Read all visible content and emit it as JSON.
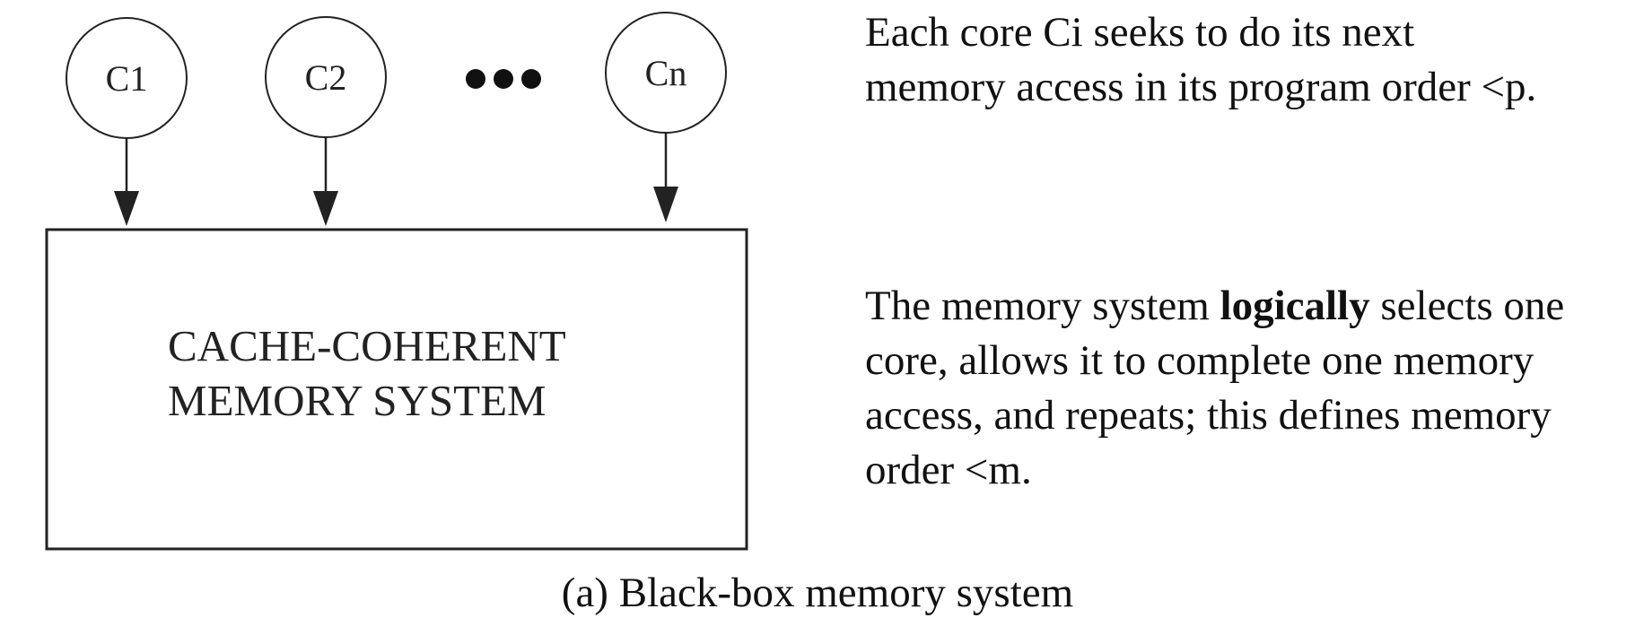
{
  "diagram": {
    "cores": [
      {
        "label": "C1"
      },
      {
        "label": "C2"
      },
      {
        "label": "Cn"
      }
    ],
    "ellipsis": "•••",
    "memory_box": {
      "line1": "CACHE-COHERENT",
      "line2": "MEMORY SYSTEM"
    }
  },
  "descriptions": {
    "cores": {
      "line1": "Each core Ci seeks to do its next",
      "line2": "memory access in its program order <p."
    },
    "memory": {
      "line1_before": "The memory system ",
      "line1_bold": "logically",
      "line1_after": " selects one",
      "line2": "core, allows it to complete one memory",
      "line3": "access, and repeats; this defines memory",
      "line4": "order <m."
    }
  },
  "caption": "(a) Black-box memory system"
}
